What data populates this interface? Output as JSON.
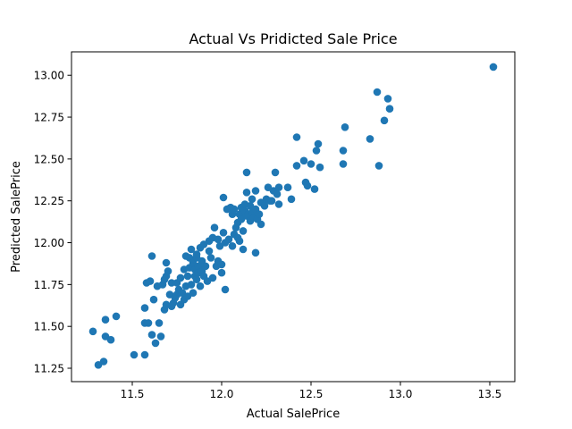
{
  "chart_data": {
    "type": "scatter",
    "title": "Actual Vs Pridicted Sale Price",
    "xlabel": "Actual SalePrice",
    "ylabel": "Predicted SalePrice",
    "xlim": [
      11.16,
      13.64
    ],
    "ylim": [
      11.17,
      13.14
    ],
    "xticks": [
      11.5,
      12.0,
      12.5,
      13.0,
      13.5
    ],
    "xtick_labels": [
      "11.5",
      "12.0",
      "12.5",
      "13.0",
      "13.5"
    ],
    "yticks": [
      11.25,
      11.5,
      11.75,
      12.0,
      12.25,
      12.5,
      12.75,
      13.0
    ],
    "ytick_labels": [
      "11.25",
      "11.50",
      "11.75",
      "12.00",
      "12.25",
      "12.50",
      "12.75",
      "13.00"
    ],
    "grid": false,
    "marker_color": "#1f77b4",
    "points": [
      [
        11.28,
        11.47
      ],
      [
        11.31,
        11.27
      ],
      [
        11.34,
        11.29
      ],
      [
        11.35,
        11.54
      ],
      [
        11.35,
        11.44
      ],
      [
        11.38,
        11.42
      ],
      [
        11.41,
        11.56
      ],
      [
        11.51,
        11.33
      ],
      [
        11.57,
        11.33
      ],
      [
        11.57,
        11.52
      ],
      [
        11.57,
        11.61
      ],
      [
        11.58,
        11.76
      ],
      [
        11.59,
        11.52
      ],
      [
        11.6,
        11.77
      ],
      [
        11.61,
        11.45
      ],
      [
        11.61,
        11.92
      ],
      [
        11.62,
        11.66
      ],
      [
        11.63,
        11.4
      ],
      [
        11.64,
        11.74
      ],
      [
        11.65,
        11.52
      ],
      [
        11.66,
        11.44
      ],
      [
        11.67,
        11.75
      ],
      [
        11.68,
        11.6
      ],
      [
        11.68,
        11.78
      ],
      [
        11.69,
        11.63
      ],
      [
        11.69,
        11.8
      ],
      [
        11.69,
        11.88
      ],
      [
        11.7,
        11.83
      ],
      [
        11.71,
        11.69
      ],
      [
        11.72,
        11.62
      ],
      [
        11.72,
        11.76
      ],
      [
        11.73,
        11.64
      ],
      [
        11.74,
        11.67
      ],
      [
        11.75,
        11.76
      ],
      [
        11.75,
        11.69
      ],
      [
        11.76,
        11.72
      ],
      [
        11.77,
        11.79
      ],
      [
        11.77,
        11.63
      ],
      [
        11.78,
        11.7
      ],
      [
        11.79,
        11.66
      ],
      [
        11.79,
        11.84
      ],
      [
        11.8,
        11.92
      ],
      [
        11.8,
        11.74
      ],
      [
        11.81,
        11.68
      ],
      [
        11.81,
        11.8
      ],
      [
        11.82,
        11.85
      ],
      [
        11.82,
        11.91
      ],
      [
        11.83,
        11.96
      ],
      [
        11.83,
        11.75
      ],
      [
        11.84,
        11.7
      ],
      [
        11.84,
        11.88
      ],
      [
        11.85,
        11.84
      ],
      [
        11.85,
        11.8
      ],
      [
        11.86,
        11.91
      ],
      [
        11.86,
        11.93
      ],
      [
        11.86,
        11.78
      ],
      [
        11.87,
        11.86
      ],
      [
        11.87,
        11.82
      ],
      [
        11.88,
        11.74
      ],
      [
        11.88,
        11.97
      ],
      [
        11.89,
        11.83
      ],
      [
        11.89,
        11.89
      ],
      [
        11.9,
        11.8
      ],
      [
        11.9,
        11.99
      ],
      [
        11.91,
        11.86
      ],
      [
        11.92,
        11.77
      ],
      [
        11.93,
        12.01
      ],
      [
        11.93,
        11.95
      ],
      [
        11.94,
        11.91
      ],
      [
        11.95,
        11.79
      ],
      [
        11.95,
        12.03
      ],
      [
        11.96,
        12.09
      ],
      [
        11.97,
        11.86
      ],
      [
        11.98,
        11.89
      ],
      [
        11.98,
        12.02
      ],
      [
        11.99,
        11.98
      ],
      [
        12.0,
        11.87
      ],
      [
        12.0,
        11.82
      ],
      [
        12.01,
        12.06
      ],
      [
        12.01,
        12.27
      ],
      [
        12.02,
        11.72
      ],
      [
        12.02,
        12.0
      ],
      [
        12.03,
        12.2
      ],
      [
        12.04,
        12.02
      ],
      [
        12.05,
        12.21
      ],
      [
        12.06,
        12.17
      ],
      [
        12.06,
        11.98
      ],
      [
        12.07,
        12.05
      ],
      [
        12.07,
        12.2
      ],
      [
        12.08,
        12.09
      ],
      [
        12.09,
        12.03
      ],
      [
        12.09,
        12.12
      ],
      [
        12.1,
        12.17
      ],
      [
        12.1,
        12.01
      ],
      [
        12.11,
        12.14
      ],
      [
        12.11,
        12.21
      ],
      [
        12.12,
        11.96
      ],
      [
        12.12,
        12.07
      ],
      [
        12.13,
        12.19
      ],
      [
        12.13,
        12.23
      ],
      [
        12.14,
        12.16
      ],
      [
        12.14,
        12.3
      ],
      [
        12.14,
        12.42
      ],
      [
        12.15,
        12.17
      ],
      [
        12.16,
        12.13
      ],
      [
        12.16,
        12.22
      ],
      [
        12.17,
        12.18
      ],
      [
        12.17,
        12.26
      ],
      [
        12.18,
        12.15
      ],
      [
        12.19,
        12.2
      ],
      [
        12.19,
        11.94
      ],
      [
        12.19,
        12.31
      ],
      [
        12.2,
        12.14
      ],
      [
        12.21,
        12.17
      ],
      [
        12.22,
        12.24
      ],
      [
        12.22,
        12.11
      ],
      [
        12.24,
        12.22
      ],
      [
        12.25,
        12.26
      ],
      [
        12.26,
        12.33
      ],
      [
        12.27,
        12.25
      ],
      [
        12.28,
        12.25
      ],
      [
        12.29,
        12.31
      ],
      [
        12.3,
        12.42
      ],
      [
        12.31,
        12.29
      ],
      [
        12.32,
        12.33
      ],
      [
        12.32,
        12.23
      ],
      [
        12.37,
        12.33
      ],
      [
        12.39,
        12.26
      ],
      [
        12.42,
        12.63
      ],
      [
        12.42,
        12.46
      ],
      [
        12.46,
        12.49
      ],
      [
        12.47,
        12.36
      ],
      [
        12.48,
        12.34
      ],
      [
        12.5,
        12.47
      ],
      [
        12.52,
        12.32
      ],
      [
        12.53,
        12.55
      ],
      [
        12.54,
        12.59
      ],
      [
        12.55,
        12.45
      ],
      [
        12.68,
        12.47
      ],
      [
        12.68,
        12.55
      ],
      [
        12.69,
        12.69
      ],
      [
        12.83,
        12.62
      ],
      [
        12.87,
        12.9
      ],
      [
        12.88,
        12.46
      ],
      [
        12.91,
        12.73
      ],
      [
        12.93,
        12.86
      ],
      [
        12.94,
        12.8
      ],
      [
        13.52,
        13.05
      ]
    ]
  }
}
